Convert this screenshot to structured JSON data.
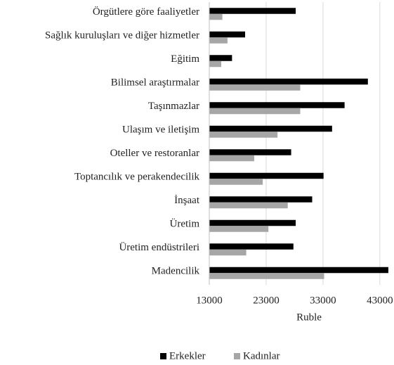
{
  "chart_data": {
    "type": "barh",
    "categories": [
      "Örgütlere göre faaliyetler",
      "Sağlık kuruluşları ve diğer hizmetler",
      "Eğitim",
      "Bilimsel araştırmalar",
      "Taşınmazlar",
      "Ulaşım ve iletişim",
      "Oteller ve restoranlar",
      "Toptancılık ve perakendecilik",
      "İnşaat",
      "Üretim",
      "Üretim endüstrileri",
      "Madencilik"
    ],
    "series": [
      {
        "name": "Erkekler",
        "color": "#000000",
        "values": [
          28200,
          19300,
          17000,
          40900,
          36800,
          34600,
          27400,
          33100,
          31100,
          28200,
          27800,
          44500
        ]
      },
      {
        "name": "Kadınlar",
        "color": "#a6a6a6",
        "values": [
          15300,
          16200,
          15100,
          29000,
          29000,
          25000,
          20900,
          22400,
          26800,
          23400,
          19500,
          33200
        ]
      }
    ],
    "xlabel": "Ruble",
    "xlim": [
      13000,
      45000
    ],
    "xticks": [
      13000,
      23000,
      33000,
      43000
    ],
    "grid": true,
    "legend": "bottom"
  }
}
